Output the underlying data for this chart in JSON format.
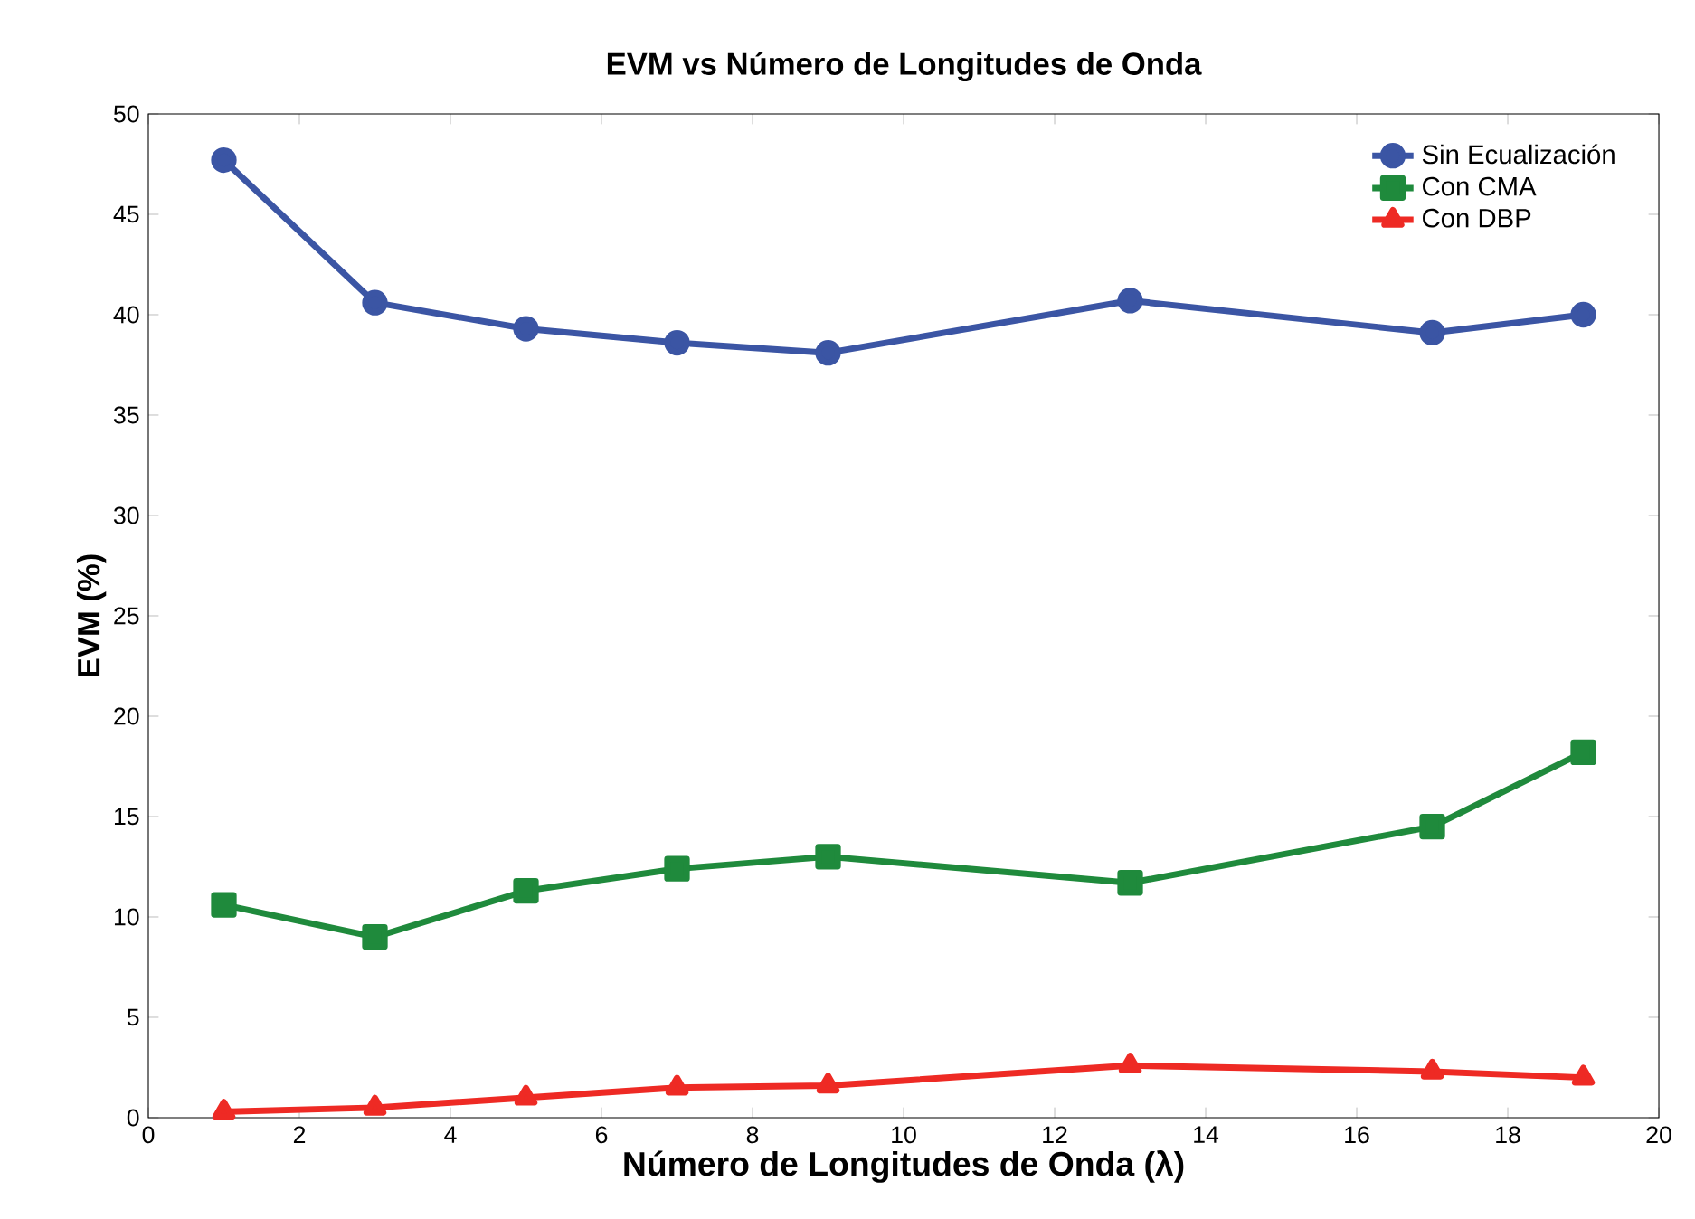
{
  "chart_data": {
    "type": "line",
    "title": "EVM vs Número de Longitudes de Onda",
    "xlabel": "Número de Longitudes de Onda (λ)",
    "ylabel": "EVM (%)",
    "x": [
      1,
      3,
      5,
      7,
      9,
      13,
      17,
      19
    ],
    "series": [
      {
        "name": "Sin Ecualización",
        "color": "#3b55a4",
        "marker": "circle",
        "values": [
          47.7,
          40.6,
          39.3,
          38.6,
          38.1,
          40.7,
          39.1,
          40.0
        ]
      },
      {
        "name": "Con CMA",
        "color": "#1f8a3c",
        "marker": "square",
        "values": [
          10.6,
          9.0,
          11.3,
          12.4,
          13.0,
          11.7,
          14.5,
          18.2
        ]
      },
      {
        "name": "Con DBP",
        "color": "#ee2a24",
        "marker": "triangle",
        "values": [
          0.3,
          0.5,
          1.0,
          1.5,
          1.6,
          2.6,
          2.3,
          2.0
        ]
      }
    ],
    "xlim": [
      0,
      20
    ],
    "ylim": [
      0,
      50
    ],
    "xticks": [
      0,
      2,
      4,
      6,
      8,
      10,
      12,
      14,
      16,
      18,
      20
    ],
    "yticks": [
      0,
      5,
      10,
      15,
      20,
      25,
      30,
      35,
      40,
      45,
      50
    ],
    "grid": false,
    "legend": "top right",
    "line_style": "solid"
  }
}
